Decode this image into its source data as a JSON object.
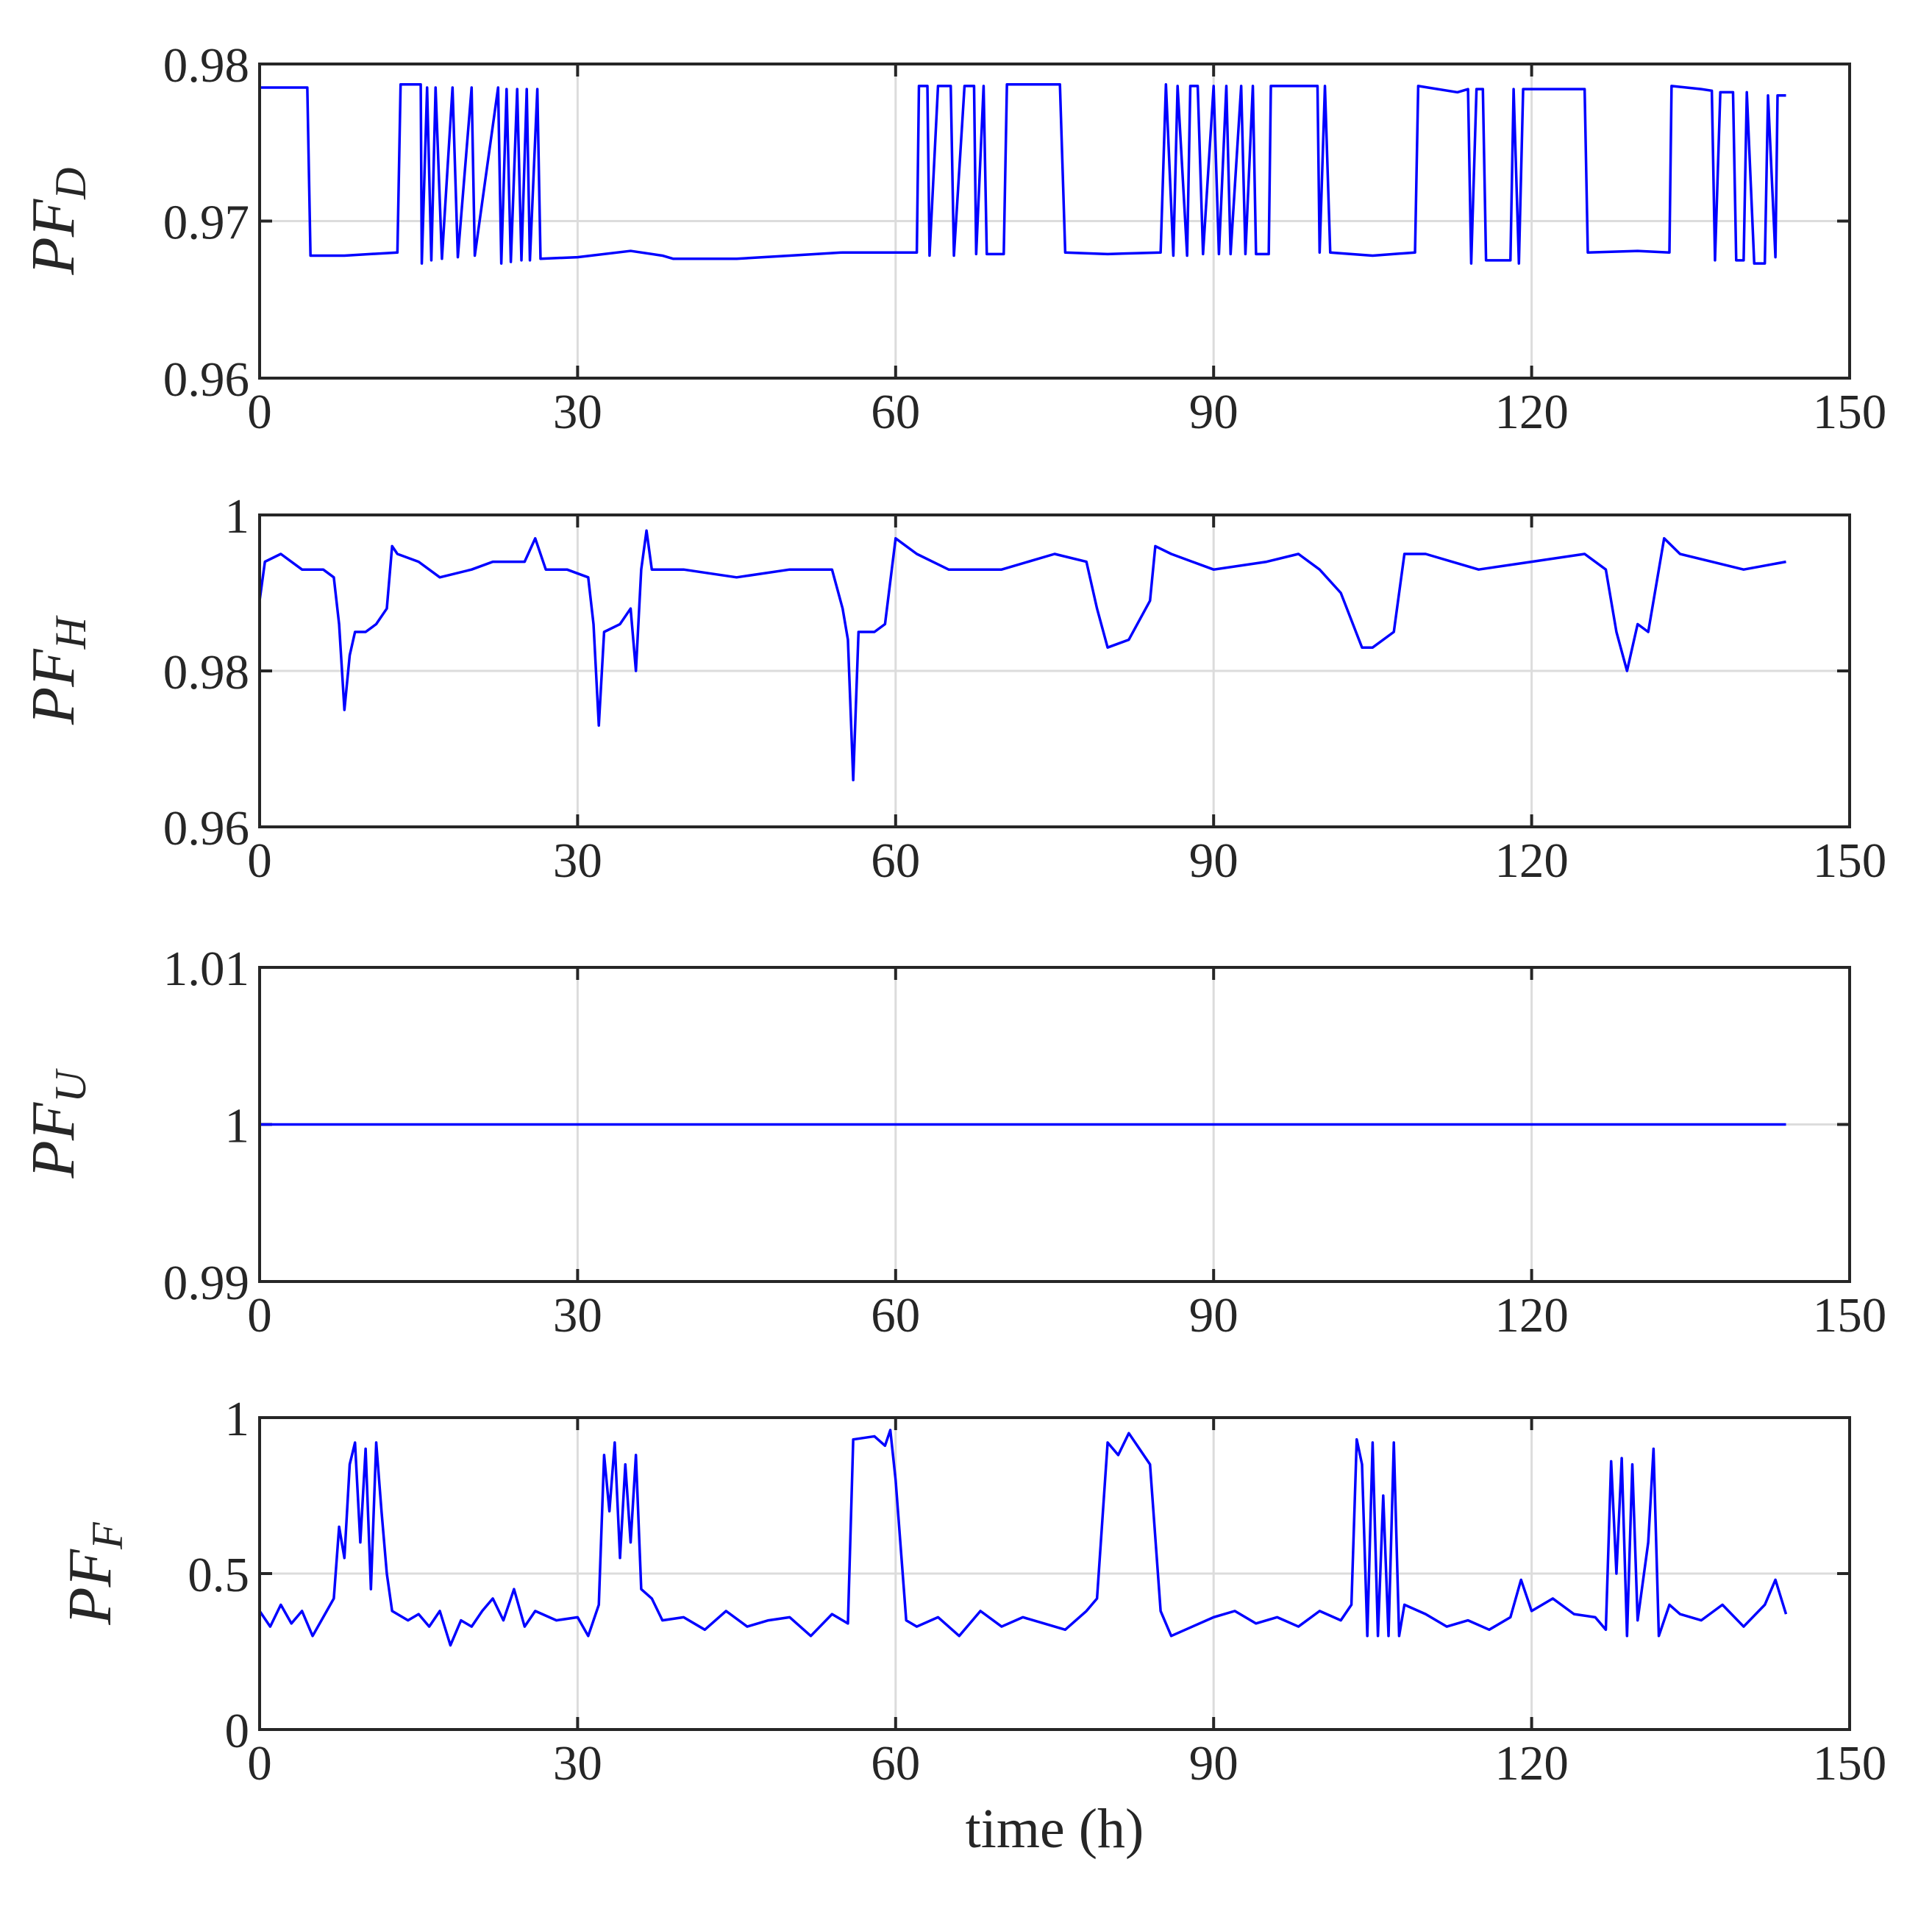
{
  "chart_data": [
    {
      "type": "line",
      "ylabel": "PF",
      "ylabel_sub": "D",
      "color": "#0000ff",
      "grid": true,
      "xlim": [
        0,
        150
      ],
      "xticks": [
        0,
        30,
        60,
        90,
        120,
        150
      ],
      "ylim": [
        0.96,
        0.98
      ],
      "yticks": [
        0.96,
        0.97,
        0.98
      ],
      "x": [
        0,
        4.5,
        4.8,
        8,
        13,
        13.3,
        15.2,
        15.3,
        15.8,
        16.2,
        16.6,
        17.2,
        18.2,
        18.7,
        20,
        20.3,
        22.5,
        22.8,
        23.3,
        23.7,
        24.3,
        24.7,
        25.2,
        25.5,
        26.2,
        26.5,
        30,
        35,
        38,
        39,
        45,
        50,
        55,
        62,
        62.2,
        63,
        63.2,
        64,
        65.2,
        65.5,
        66.5,
        67.4,
        67.6,
        68.3,
        68.6,
        70.2,
        70.5,
        75.5,
        76,
        80,
        85,
        85.5,
        86.2,
        86.6,
        87.5,
        87.8,
        88.5,
        89,
        90,
        90.5,
        91.2,
        91.6,
        92.6,
        93,
        93.7,
        94,
        95.2,
        95.4,
        99.8,
        100,
        100.5,
        101,
        105,
        109,
        109.3,
        113,
        114,
        114.3,
        114.8,
        115.4,
        115.7,
        116.5,
        118,
        118.3,
        118.8,
        119.2,
        123,
        125,
        125.3,
        130,
        133,
        133.2,
        136,
        137,
        137.3,
        137.8,
        139,
        139.3,
        140,
        140.3,
        141,
        142,
        142.3,
        143,
        143.2,
        144
      ],
      "values": [
        0.9785,
        0.9785,
        0.9678,
        0.9678,
        0.968,
        0.9787,
        0.9787,
        0.9673,
        0.9785,
        0.9675,
        0.9785,
        0.9676,
        0.9785,
        0.9677,
        0.9785,
        0.9678,
        0.9785,
        0.9673,
        0.9784,
        0.9674,
        0.9784,
        0.9675,
        0.9784,
        0.9675,
        0.9784,
        0.9676,
        0.9677,
        0.9681,
        0.9678,
        0.9676,
        0.9676,
        0.9678,
        0.968,
        0.968,
        0.9786,
        0.9786,
        0.9678,
        0.9786,
        0.9786,
        0.9678,
        0.9786,
        0.9786,
        0.9679,
        0.9786,
        0.9679,
        0.9679,
        0.9787,
        0.9787,
        0.968,
        0.9679,
        0.968,
        0.9787,
        0.9678,
        0.9786,
        0.9678,
        0.9786,
        0.9786,
        0.9679,
        0.9786,
        0.9679,
        0.9786,
        0.9679,
        0.9786,
        0.9679,
        0.9786,
        0.9679,
        0.9679,
        0.9786,
        0.9786,
        0.968,
        0.9786,
        0.968,
        0.9678,
        0.968,
        0.9786,
        0.9782,
        0.9784,
        0.9673,
        0.9784,
        0.9784,
        0.9675,
        0.9675,
        0.9675,
        0.9784,
        0.9673,
        0.9784,
        0.9784,
        0.9784,
        0.968,
        0.9681,
        0.968,
        0.9786,
        0.9784,
        0.9783,
        0.9675,
        0.9782,
        0.9782,
        0.9675,
        0.9675,
        0.9782,
        0.9673,
        0.9673,
        0.978,
        0.9677,
        0.978,
        0.978
      ]
    },
    {
      "type": "line",
      "ylabel": "PF",
      "ylabel_sub": "H",
      "color": "#0000ff",
      "grid": true,
      "xlim": [
        0,
        150
      ],
      "xticks": [
        0,
        30,
        60,
        90,
        120,
        150
      ],
      "ylim": [
        0.96,
        1
      ],
      "yticks": [
        0.96,
        0.98,
        1
      ],
      "x": [
        0,
        0.5,
        2,
        4,
        6,
        7,
        7.5,
        8,
        8.5,
        9,
        10,
        11,
        12,
        12.5,
        13,
        15,
        17,
        20,
        22,
        25,
        26,
        27,
        29,
        31,
        31.5,
        32,
        32.5,
        34,
        35,
        35.5,
        36,
        36.5,
        37,
        40,
        45,
        50,
        54,
        55,
        55.5,
        56,
        56.5,
        58,
        59,
        60,
        62,
        65,
        70,
        75,
        78,
        79,
        80,
        82,
        84,
        84.5,
        86,
        88,
        90,
        95,
        98,
        100,
        102,
        104,
        105,
        107,
        108,
        110,
        115,
        120,
        125,
        127,
        128,
        129,
        130,
        131,
        132,
        132.5,
        134,
        137,
        140,
        144
      ],
      "values": [
        0.989,
        0.994,
        0.995,
        0.993,
        0.993,
        0.992,
        0.986,
        0.975,
        0.982,
        0.985,
        0.985,
        0.986,
        0.988,
        0.996,
        0.995,
        0.994,
        0.992,
        0.993,
        0.994,
        0.994,
        0.997,
        0.993,
        0.993,
        0.992,
        0.986,
        0.973,
        0.985,
        0.986,
        0.988,
        0.98,
        0.993,
        0.998,
        0.993,
        0.993,
        0.992,
        0.993,
        0.993,
        0.988,
        0.984,
        0.966,
        0.985,
        0.985,
        0.986,
        0.997,
        0.995,
        0.993,
        0.993,
        0.995,
        0.994,
        0.988,
        0.983,
        0.984,
        0.989,
        0.996,
        0.995,
        0.994,
        0.993,
        0.994,
        0.995,
        0.993,
        0.99,
        0.983,
        0.983,
        0.985,
        0.995,
        0.995,
        0.993,
        0.994,
        0.995,
        0.993,
        0.985,
        0.98,
        0.986,
        0.985,
        0.993,
        0.997,
        0.995,
        0.994,
        0.993,
        0.994
      ]
    },
    {
      "type": "line",
      "ylabel": "PF",
      "ylabel_sub": "U",
      "color": "#0000ff",
      "grid": true,
      "xlim": [
        0,
        150
      ],
      "xticks": [
        0,
        30,
        60,
        90,
        120,
        150
      ],
      "ylim": [
        0.99,
        1.01
      ],
      "yticks": [
        0.99,
        1,
        1.01
      ],
      "x": [
        0,
        144
      ],
      "values": [
        1,
        1
      ]
    },
    {
      "type": "line",
      "ylabel": "PF",
      "ylabel_sub": "F",
      "xlabel": "time (h)",
      "color": "#0000ff",
      "grid": true,
      "xlim": [
        0,
        150
      ],
      "xticks": [
        0,
        30,
        60,
        90,
        120,
        150
      ],
      "ylim": [
        0,
        1
      ],
      "yticks": [
        0,
        0.5,
        1
      ],
      "x": [
        0,
        1,
        2,
        3,
        4,
        5,
        6,
        7,
        7.5,
        8,
        8.5,
        9,
        9.5,
        10,
        10.5,
        11,
        11.5,
        12,
        12.5,
        14,
        15,
        16,
        17,
        18,
        19,
        20,
        21,
        22,
        23,
        24,
        25,
        26,
        28,
        30,
        31,
        32,
        32.5,
        33,
        33.5,
        34,
        34.5,
        35,
        35.5,
        36,
        37,
        38,
        40,
        42,
        44,
        46,
        48,
        50,
        52,
        54,
        55.5,
        56,
        58,
        59,
        59.5,
        60,
        61,
        62,
        64,
        66,
        68,
        70,
        72,
        74,
        76,
        78,
        79,
        80,
        81,
        82,
        83,
        84,
        85,
        86,
        88,
        90,
        92,
        94,
        96,
        98,
        100,
        102,
        103,
        103.5,
        104,
        104.5,
        105,
        105.5,
        106,
        106.5,
        107,
        107.5,
        108,
        110,
        112,
        114,
        116,
        118,
        119,
        120,
        122,
        124,
        126,
        127,
        127.5,
        128,
        128.5,
        129,
        129.5,
        130,
        131,
        131.5,
        132,
        133,
        134,
        136,
        138,
        140,
        142,
        143,
        144
      ],
      "values": [
        0.38,
        0.33,
        0.4,
        0.34,
        0.38,
        0.3,
        0.36,
        0.42,
        0.65,
        0.55,
        0.85,
        0.92,
        0.6,
        0.9,
        0.45,
        0.92,
        0.7,
        0.5,
        0.38,
        0.35,
        0.37,
        0.33,
        0.38,
        0.27,
        0.35,
        0.33,
        0.38,
        0.42,
        0.35,
        0.45,
        0.33,
        0.38,
        0.35,
        0.36,
        0.3,
        0.4,
        0.88,
        0.7,
        0.92,
        0.55,
        0.85,
        0.6,
        0.88,
        0.45,
        0.42,
        0.35,
        0.36,
        0.32,
        0.38,
        0.33,
        0.35,
        0.36,
        0.3,
        0.37,
        0.34,
        0.93,
        0.94,
        0.91,
        0.96,
        0.8,
        0.35,
        0.33,
        0.36,
        0.3,
        0.38,
        0.33,
        0.36,
        0.34,
        0.32,
        0.38,
        0.42,
        0.92,
        0.88,
        0.95,
        0.9,
        0.85,
        0.38,
        0.3,
        0.33,
        0.36,
        0.38,
        0.34,
        0.36,
        0.33,
        0.38,
        0.35,
        0.4,
        0.93,
        0.85,
        0.3,
        0.92,
        0.3,
        0.75,
        0.3,
        0.92,
        0.3,
        0.4,
        0.37,
        0.33,
        0.35,
        0.32,
        0.36,
        0.48,
        0.38,
        0.42,
        0.37,
        0.36,
        0.32,
        0.86,
        0.5,
        0.87,
        0.3,
        0.85,
        0.35,
        0.6,
        0.9,
        0.3,
        0.4,
        0.37,
        0.35,
        0.4,
        0.33,
        0.4,
        0.48,
        0.37
      ]
    }
  ]
}
